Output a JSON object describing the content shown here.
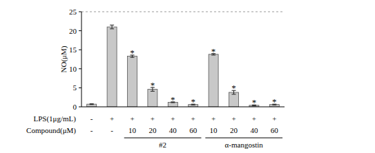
{
  "chart_data": {
    "type": "bar",
    "ylabel": "NO(μM)",
    "xlabel": "Compound(μM)",
    "categories": [
      "-",
      "-",
      "10",
      "20",
      "40",
      "60",
      "10",
      "20",
      "40",
      "60"
    ],
    "lps_row": {
      "label": "LPS(1μg/mL)",
      "values": [
        "-",
        "+",
        "+",
        "+",
        "+",
        "+",
        "+",
        "+",
        "+",
        "+"
      ]
    },
    "group_of": [
      null,
      null,
      "#2",
      "#2",
      "#2",
      "#2",
      "α-mangostin",
      "α-mangostin",
      "α-mangostin",
      "α-mangostin"
    ],
    "values": [
      0.7,
      21.0,
      13.3,
      4.6,
      1.2,
      0.6,
      13.8,
      3.8,
      0.4,
      0.6
    ],
    "errors": [
      0.1,
      0.5,
      0.3,
      0.5,
      0.1,
      0.1,
      0.2,
      0.5,
      0.1,
      0.1
    ],
    "significance": [
      null,
      null,
      "*",
      "*",
      "*",
      "*",
      "*",
      "*",
      "*",
      "*"
    ],
    "color": "#c8c8c8",
    "ylim": [
      0,
      25
    ],
    "yticks": [
      0,
      5,
      10,
      15,
      20,
      25
    ],
    "grid": false
  }
}
